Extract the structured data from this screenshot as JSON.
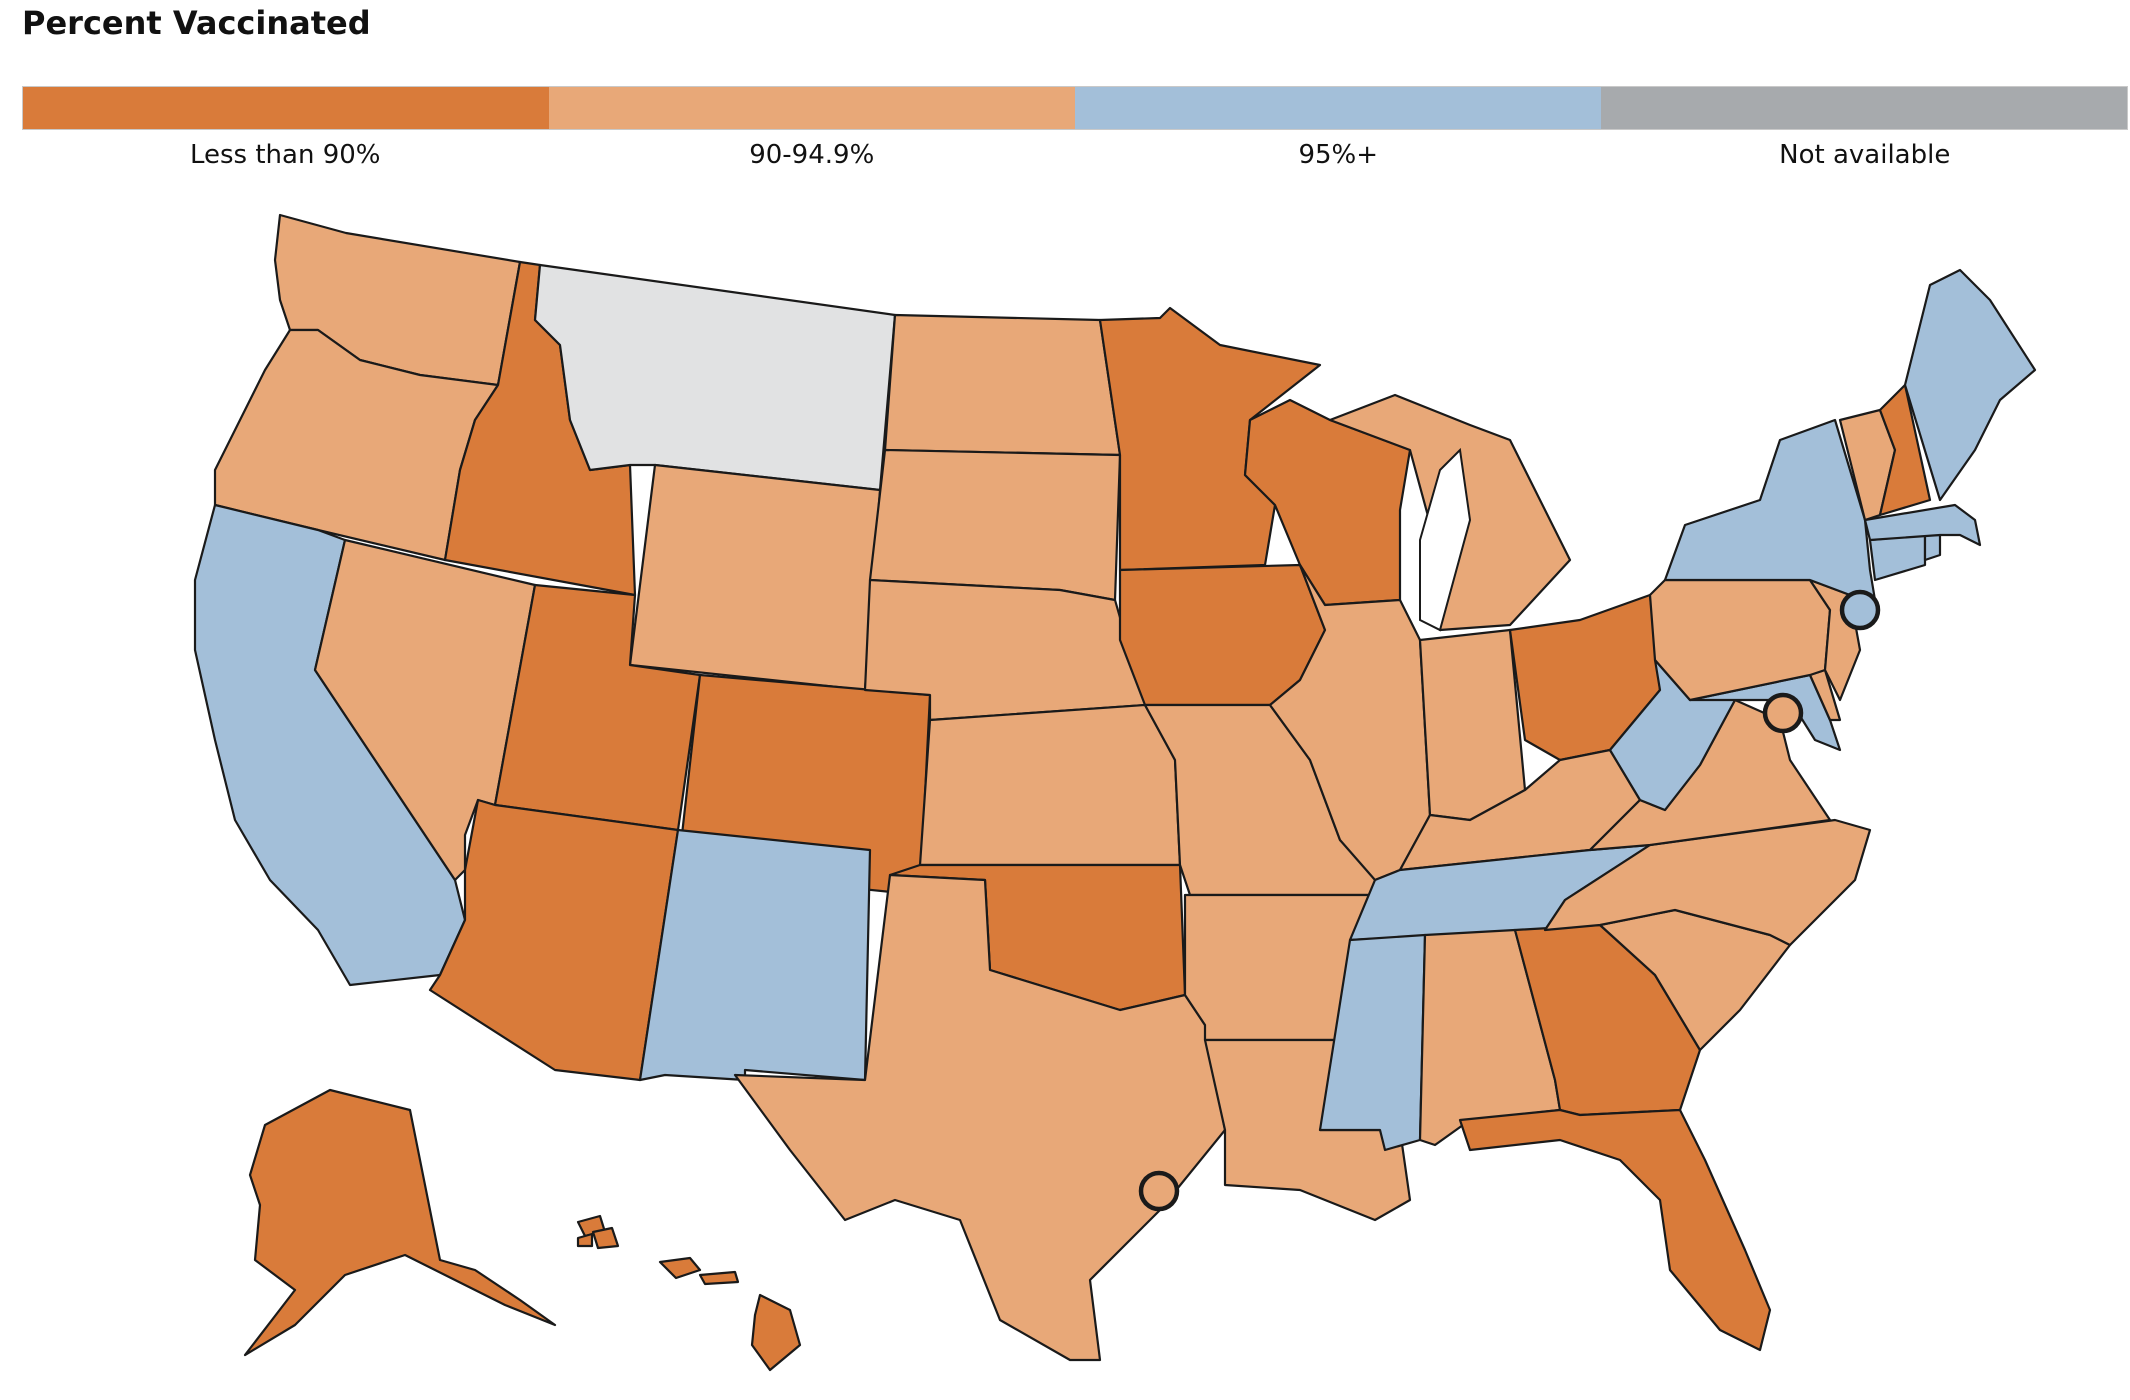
{
  "title": "Percent Vaccinated",
  "legend": [
    {
      "label": "Less than 90%",
      "color": "#d97b3a"
    },
    {
      "label": "90-94.9%",
      "color": "#e8a878"
    },
    {
      "label": "95%+",
      "color": "#a3bfd9"
    },
    {
      "label": "Not available",
      "color": "#a7aaad"
    }
  ],
  "colors": {
    "low": "#d97b3a",
    "mid": "#e8a878",
    "high": "#a3bfd9",
    "na": "#a7aaad",
    "na_map": "#e1e2e3",
    "border": "#1a1a1a"
  },
  "regions": [
    {
      "name": "washington",
      "category": "mid"
    },
    {
      "name": "oregon",
      "category": "mid"
    },
    {
      "name": "california",
      "category": "high"
    },
    {
      "name": "idaho",
      "category": "low"
    },
    {
      "name": "nevada",
      "category": "mid"
    },
    {
      "name": "montana",
      "category": "na_map"
    },
    {
      "name": "wyoming",
      "category": "mid"
    },
    {
      "name": "utah",
      "category": "low"
    },
    {
      "name": "arizona",
      "category": "low"
    },
    {
      "name": "colorado",
      "category": "low"
    },
    {
      "name": "new-mexico",
      "category": "high"
    },
    {
      "name": "north-dakota",
      "category": "mid"
    },
    {
      "name": "south-dakota",
      "category": "mid"
    },
    {
      "name": "nebraska",
      "category": "mid"
    },
    {
      "name": "kansas",
      "category": "mid"
    },
    {
      "name": "oklahoma",
      "category": "low"
    },
    {
      "name": "texas",
      "category": "mid"
    },
    {
      "name": "minnesota",
      "category": "low"
    },
    {
      "name": "iowa",
      "category": "low"
    },
    {
      "name": "missouri",
      "category": "mid"
    },
    {
      "name": "arkansas",
      "category": "mid"
    },
    {
      "name": "louisiana",
      "category": "mid"
    },
    {
      "name": "wisconsin",
      "category": "low"
    },
    {
      "name": "illinois",
      "category": "mid"
    },
    {
      "name": "michigan",
      "category": "mid"
    },
    {
      "name": "indiana",
      "category": "mid"
    },
    {
      "name": "ohio",
      "category": "low"
    },
    {
      "name": "kentucky",
      "category": "mid"
    },
    {
      "name": "tennessee",
      "category": "high"
    },
    {
      "name": "mississippi",
      "category": "high"
    },
    {
      "name": "alabama",
      "category": "mid"
    },
    {
      "name": "georgia",
      "category": "low"
    },
    {
      "name": "florida",
      "category": "low"
    },
    {
      "name": "south-carolina",
      "category": "mid"
    },
    {
      "name": "north-carolina",
      "category": "mid"
    },
    {
      "name": "virginia",
      "category": "mid"
    },
    {
      "name": "west-virginia",
      "category": "high"
    },
    {
      "name": "maryland",
      "category": "high"
    },
    {
      "name": "delaware",
      "category": "mid"
    },
    {
      "name": "pennsylvania",
      "category": "mid"
    },
    {
      "name": "new-jersey",
      "category": "mid"
    },
    {
      "name": "new-york",
      "category": "high"
    },
    {
      "name": "connecticut",
      "category": "high"
    },
    {
      "name": "rhode-island",
      "category": "high"
    },
    {
      "name": "massachusetts",
      "category": "high"
    },
    {
      "name": "vermont",
      "category": "mid"
    },
    {
      "name": "new-hampshire",
      "category": "low"
    },
    {
      "name": "maine",
      "category": "high"
    },
    {
      "name": "alaska",
      "category": "low"
    },
    {
      "name": "hawaii",
      "category": "low"
    },
    {
      "name": "city-new-york",
      "category": "high"
    },
    {
      "name": "city-washington-dc",
      "category": "mid"
    },
    {
      "name": "city-houston",
      "category": "mid"
    }
  ]
}
